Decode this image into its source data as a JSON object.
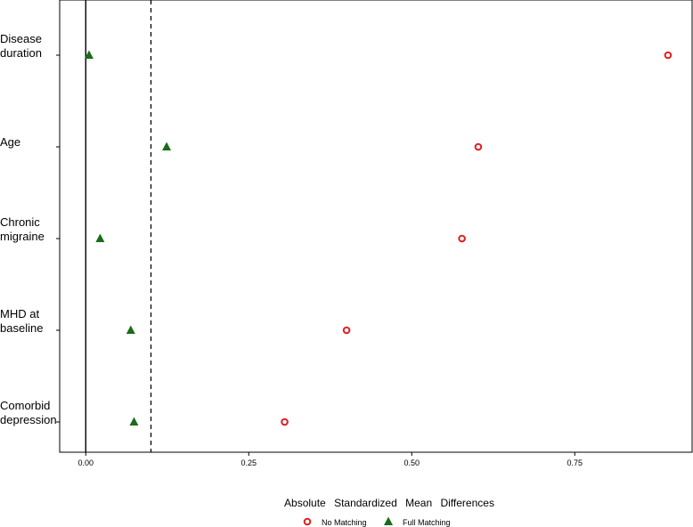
{
  "chart_data": {
    "type": "scatter",
    "title": "",
    "xlabel": "Absolute Standardized Mean Differences",
    "ylabel": "",
    "xlim": [
      -0.04,
      0.93
    ],
    "x_ticks": [
      0.0,
      0.25,
      0.5,
      0.75
    ],
    "x_tick_labels": [
      "0.00",
      "0.25",
      "0.50",
      "0.75"
    ],
    "reference_lines": [
      {
        "x": 0.0,
        "style": "solid"
      },
      {
        "x": 0.1,
        "style": "dashed"
      }
    ],
    "grid": false,
    "legend_position": "bottom",
    "categories": [
      [
        "Disease",
        "duration"
      ],
      [
        "Age"
      ],
      [
        "Chronic",
        "migraine"
      ],
      [
        "MHD at",
        "baseline"
      ],
      [
        "Comorbid",
        "depression"
      ]
    ],
    "series": [
      {
        "name": "No Matching",
        "marker": "open-circle",
        "color": "#e01e1e",
        "values": [
          0.893,
          0.602,
          0.577,
          0.4,
          0.305
        ]
      },
      {
        "name": "Full Matching",
        "marker": "filled-triangle",
        "color": "#1a6b1a",
        "values": [
          0.005,
          0.124,
          0.022,
          0.069,
          0.074
        ]
      }
    ]
  }
}
